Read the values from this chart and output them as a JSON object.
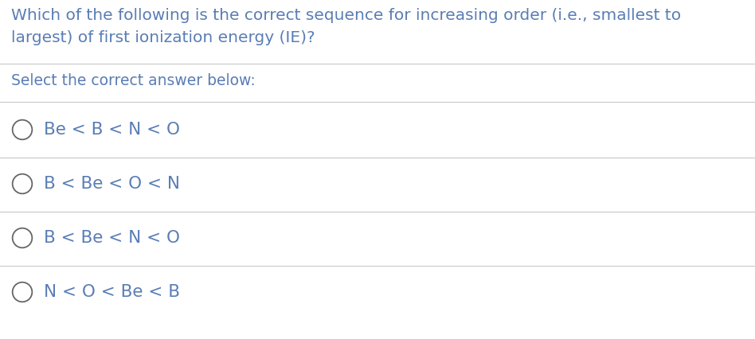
{
  "background_color": "#ffffff",
  "text_color": "#5a7db5",
  "question_line1": "Which of the following is the correct sequence for increasing order (i.e., smallest to",
  "question_line2": "largest) of first ionization energy (IE)?",
  "subtitle": "Select the correct answer below:",
  "options": [
    "Be < B < N < O",
    "B < Be < O < N",
    "B < Be < N < O",
    "N < O < Be < B"
  ],
  "separator_color": "#c8c8c8",
  "circle_color": "#666666",
  "question_fontsize": 14.5,
  "subtitle_fontsize": 13.5,
  "option_fontsize": 15.5,
  "fig_width": 9.48,
  "fig_height": 4.26,
  "dpi": 100
}
